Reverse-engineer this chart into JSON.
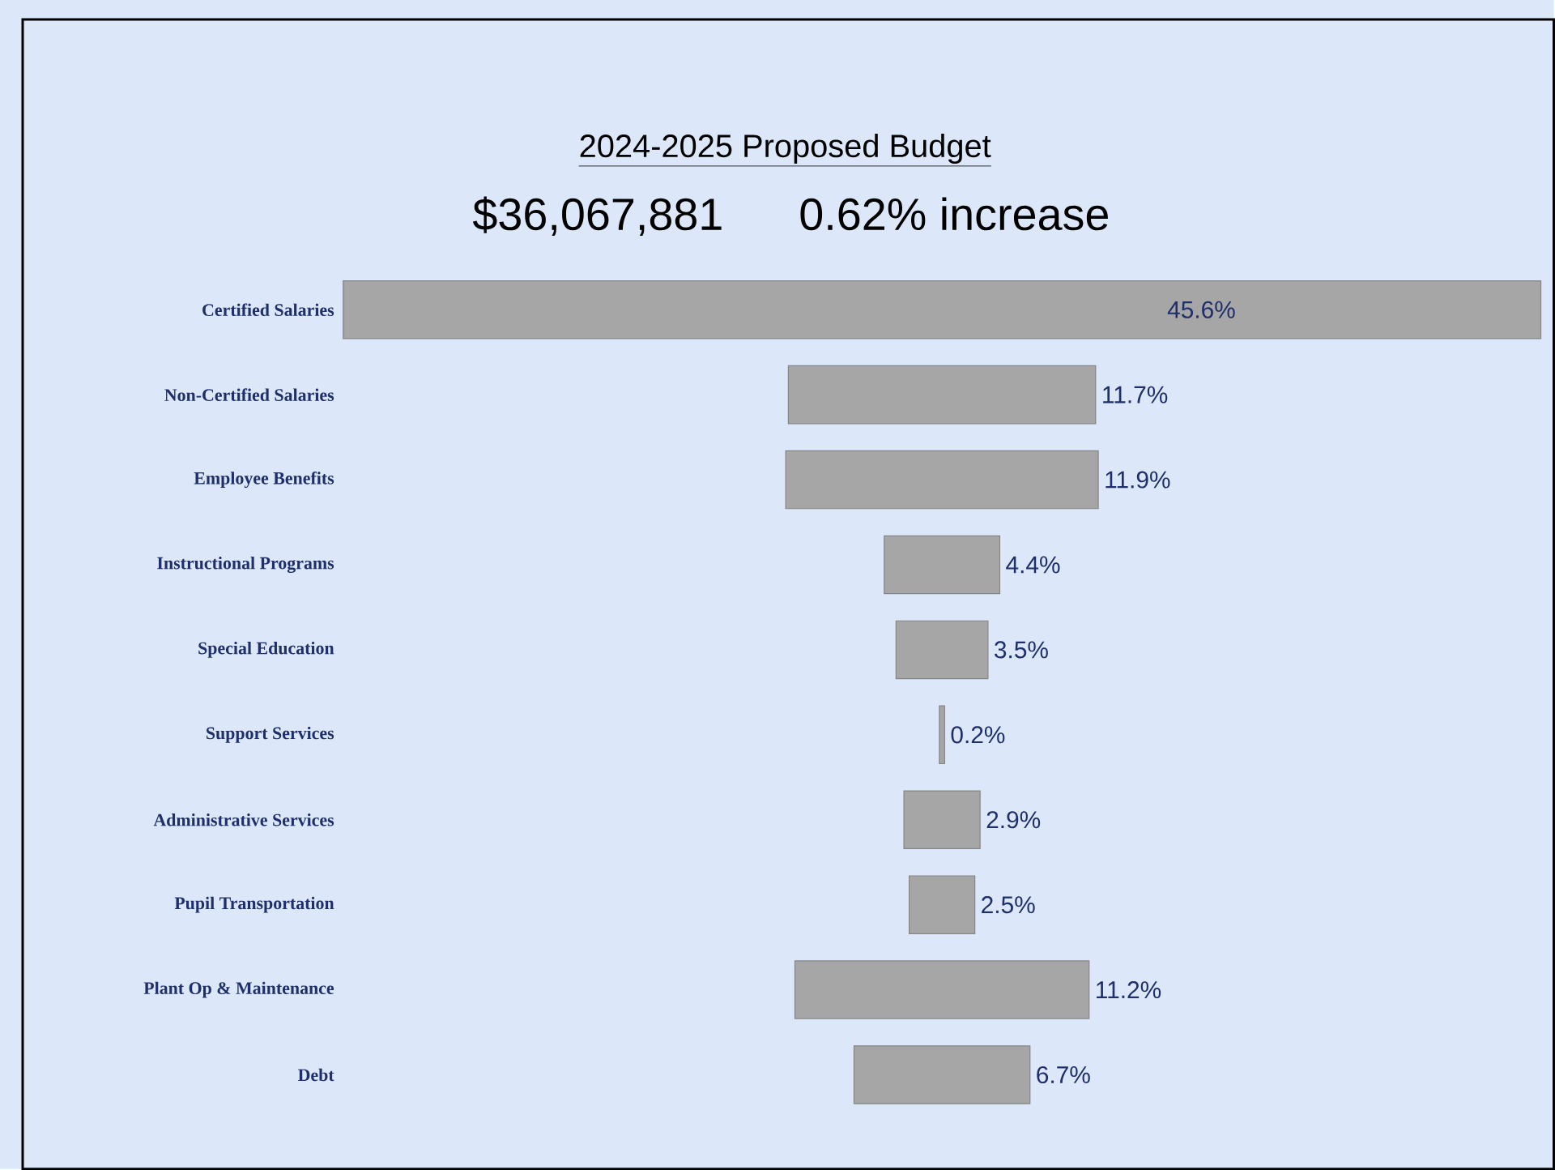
{
  "chart_data": {
    "type": "other",
    "title": "2024-2025 Proposed Budget",
    "subtitle": "$36,067,881      0.62% increase",
    "categories": [
      "Certified Salaries",
      "Non-Certified Salaries",
      "Employee Benefits",
      "Instructional Programs",
      "Special Education",
      "Support Services",
      "Administrative Services",
      "Pupil Transportation",
      "Plant Op & Maintenance",
      "Debt"
    ],
    "values": [
      45.6,
      11.7,
      11.9,
      4.4,
      3.5,
      0.2,
      2.9,
      2.5,
      11.2,
      6.7
    ],
    "value_labels": [
      "45.6%",
      "11.7%",
      "11.9%",
      "4.4%",
      "3.5%",
      "0.2%",
      "2.9%",
      "2.5%",
      "11.2%",
      "6.7%"
    ],
    "color": "#a6a6a6"
  }
}
